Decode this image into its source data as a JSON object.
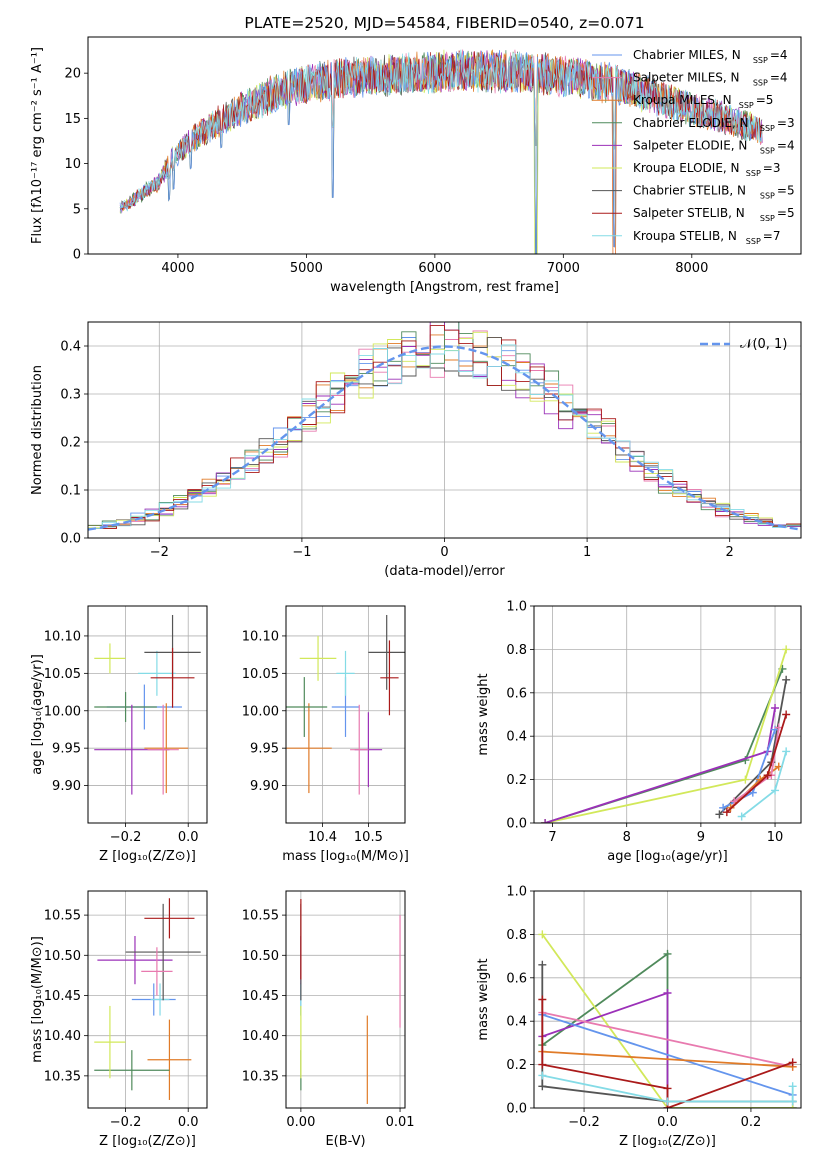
{
  "palette": [
    "#6495ed",
    "#e87aaf",
    "#e07b28",
    "#4f8a5b",
    "#9b30b8",
    "#d2e85a",
    "#555555",
    "#aa1a1a",
    "#84dbe6"
  ],
  "chart_data": [
    {
      "id": "spectrum",
      "type": "line",
      "title": "PLATE=2520, MJD=54584, FIBERID=0540, z=0.071",
      "xlabel": "wavelength [Angstrom, rest frame]",
      "ylabel": "Flux [fλ10⁻¹⁷ erg cm⁻² s⁻¹ A⁻¹]",
      "xlim": [
        3300,
        8850
      ],
      "ylim": [
        0,
        24
      ],
      "xticks": [
        4000,
        5000,
        6000,
        7000,
        8000
      ],
      "yticks": [
        0,
        5,
        10,
        15,
        20
      ],
      "legend": [
        {
          "label": "Chabrier MILES, N",
          "sub": "SSP",
          "tail": "=4"
        },
        {
          "label": "Salpeter MILES, N",
          "sub": "SSP",
          "tail": "=4"
        },
        {
          "label": "Kroupa MILES, N",
          "sub": "SSP",
          "tail": "=5"
        },
        {
          "label": "Chabrier ELODIE, N",
          "sub": "SSP",
          "tail": "=3"
        },
        {
          "label": "Salpeter ELODIE, N",
          "sub": "SSP",
          "tail": "=4"
        },
        {
          "label": "Kroupa ELODIE, N",
          "sub": "SSP",
          "tail": "=3"
        },
        {
          "label": "Chabrier STELIB, N",
          "sub": "SSP",
          "tail": "=5"
        },
        {
          "label": "Salpeter STELIB, N",
          "sub": "SSP",
          "tail": "=5"
        },
        {
          "label": "Kroupa STELIB, N",
          "sub": "SSP",
          "tail": "=7"
        }
      ],
      "legend_position": "upper-right",
      "continuum": [
        [
          3550,
          5
        ],
        [
          3700,
          6.5
        ],
        [
          3850,
          8
        ],
        [
          3950,
          10.5
        ],
        [
          4100,
          12.5
        ],
        [
          4300,
          14.5
        ],
        [
          4500,
          16
        ],
        [
          4700,
          17.5
        ],
        [
          4900,
          18.5
        ],
        [
          5100,
          19
        ],
        [
          5300,
          19.5
        ],
        [
          5600,
          19.8
        ],
        [
          5900,
          20
        ],
        [
          6200,
          20.3
        ],
        [
          6500,
          20.2
        ],
        [
          6800,
          20
        ],
        [
          7100,
          19.5
        ],
        [
          7400,
          18.8
        ],
        [
          7700,
          17.5
        ],
        [
          8000,
          16
        ],
        [
          8300,
          14.8
        ],
        [
          8550,
          13.5
        ]
      ],
      "dips": [
        [
          3933,
          4
        ],
        [
          3968,
          3.5
        ],
        [
          4102,
          3
        ],
        [
          4340,
          3
        ],
        [
          4861,
          4
        ],
        [
          5175,
          2
        ],
        [
          5205,
          13
        ],
        [
          5890,
          2
        ],
        [
          6563,
          2
        ],
        [
          6780,
          7
        ],
        [
          6790,
          20
        ],
        [
          7395,
          18
        ]
      ],
      "grid": false
    },
    {
      "id": "residuals",
      "type": "step",
      "xlabel": "(data-model)/error",
      "ylabel": "Normed distribution",
      "xlim": [
        -2.5,
        2.5
      ],
      "ylim": [
        0,
        0.45
      ],
      "xticks": [
        -2,
        -1,
        0,
        1,
        2
      ],
      "yticks": [
        0.0,
        0.1,
        0.2,
        0.3,
        0.4
      ],
      "legend": [
        "𝒩(0, 1)"
      ],
      "legend_position": "upper-right",
      "grid": true
    },
    {
      "id": "age-vs-z",
      "type": "errorbar",
      "xlabel": "Z [log₁₀(Z/Z⊙)]",
      "ylabel": "age  [log₁₀(age/yr)]",
      "xlim": [
        -0.32,
        0.06
      ],
      "ylim": [
        9.85,
        10.14
      ],
      "xticks": [
        -0.2,
        0.0
      ],
      "yticks": [
        9.9,
        9.95,
        10.0,
        10.05,
        10.1
      ],
      "grid": true,
      "points": [
        {
          "x": -0.14,
          "y": 10.005,
          "xe": 0.12,
          "ye": 0.03,
          "c": 0
        },
        {
          "x": -0.1,
          "y": 10.05,
          "xe": 0.06,
          "ye": 0.03,
          "c": 8
        },
        {
          "x": -0.07,
          "y": 9.95,
          "xe": 0.07,
          "ye": 0.06,
          "c": 2
        },
        {
          "x": -0.2,
          "y": 10.005,
          "xe": 0.1,
          "ye": 0.02,
          "c": 3
        },
        {
          "x": -0.18,
          "y": 9.948,
          "xe": 0.12,
          "ye": 0.06,
          "c": 4
        },
        {
          "x": -0.25,
          "y": 10.07,
          "xe": 0.05,
          "ye": 0.02,
          "c": 5
        },
        {
          "x": -0.05,
          "y": 10.078,
          "xe": 0.09,
          "ye": 0.05,
          "c": 6
        },
        {
          "x": -0.05,
          "y": 10.044,
          "xe": 0.07,
          "ye": 0.04,
          "c": 7
        },
        {
          "x": -0.08,
          "y": 9.948,
          "xe": 0.05,
          "ye": 0.06,
          "c": 1
        }
      ]
    },
    {
      "id": "age-vs-mass",
      "type": "errorbar",
      "xlabel": "mass [log₁₀(M/M⊙)]",
      "ylabel": "",
      "xlim": [
        10.32,
        10.58
      ],
      "ylim": [
        9.85,
        10.14
      ],
      "xticks": [
        10.4,
        10.5
      ],
      "yticks": [
        9.9,
        9.95,
        10.0,
        10.05,
        10.1
      ],
      "grid": true,
      "points": [
        {
          "x": 10.45,
          "y": 10.005,
          "xe": 0.03,
          "ye": 0.04,
          "c": 0
        },
        {
          "x": 10.45,
          "y": 10.05,
          "xe": 0.02,
          "ye": 0.03,
          "c": 8
        },
        {
          "x": 10.37,
          "y": 9.95,
          "xe": 0.05,
          "ye": 0.06,
          "c": 2
        },
        {
          "x": 10.36,
          "y": 10.005,
          "xe": 0.05,
          "ye": 0.04,
          "c": 3
        },
        {
          "x": 10.5,
          "y": 9.948,
          "xe": 0.03,
          "ye": 0.05,
          "c": 4
        },
        {
          "x": 10.39,
          "y": 10.07,
          "xe": 0.04,
          "ye": 0.03,
          "c": 5
        },
        {
          "x": 10.54,
          "y": 10.078,
          "xe": 0.04,
          "ye": 0.05,
          "c": 6
        },
        {
          "x": 10.546,
          "y": 10.044,
          "xe": 0.02,
          "ye": 0.05,
          "c": 7
        },
        {
          "x": 10.48,
          "y": 9.948,
          "xe": 0.02,
          "ye": 0.06,
          "c": 1
        }
      ]
    },
    {
      "id": "weight-vs-age",
      "type": "line",
      "xlabel": "age  [log₁₀(age/yr)]",
      "ylabel": "mass weight",
      "xlim": [
        6.75,
        10.35
      ],
      "ylim": [
        0,
        1.0
      ],
      "xticks": [
        7,
        8,
        9,
        10
      ],
      "yticks": [
        0.0,
        0.2,
        0.4,
        0.6,
        0.8,
        1.0
      ],
      "grid": true,
      "series": [
        {
          "c": 3,
          "x": [
            6.9,
            9.6,
            10.1
          ],
          "y": [
            0.0,
            0.29,
            0.71
          ]
        },
        {
          "c": 5,
          "x": [
            6.9,
            9.6,
            10.15
          ],
          "y": [
            0.0,
            0.2,
            0.8
          ]
        },
        {
          "c": 4,
          "x": [
            6.9,
            9.9,
            10.0
          ],
          "y": [
            0.0,
            0.33,
            0.53
          ]
        },
        {
          "c": 6,
          "x": [
            9.25,
            9.95,
            10.15
          ],
          "y": [
            0.04,
            0.28,
            0.66
          ]
        },
        {
          "c": 0,
          "x": [
            9.3,
            9.7,
            10.0
          ],
          "y": [
            0.07,
            0.14,
            0.43
          ]
        },
        {
          "c": 2,
          "x": [
            9.4,
            9.8,
            10.05
          ],
          "y": [
            0.07,
            0.2,
            0.26
          ]
        },
        {
          "c": 1,
          "x": [
            9.45,
            9.95,
            10.05
          ],
          "y": [
            0.1,
            0.22,
            0.44
          ]
        },
        {
          "c": 7,
          "x": [
            9.35,
            9.9,
            10.15
          ],
          "y": [
            0.05,
            0.22,
            0.5
          ]
        },
        {
          "c": 8,
          "x": [
            9.55,
            10.0,
            10.15
          ],
          "y": [
            0.03,
            0.15,
            0.33
          ]
        }
      ]
    },
    {
      "id": "mass-vs-z",
      "type": "errorbar",
      "xlabel": "Z [log₁₀(Z/Z⊙)]",
      "ylabel": "mass [log₁₀(M/M⊙)]",
      "xlim": [
        -0.32,
        0.06
      ],
      "ylim": [
        10.31,
        10.58
      ],
      "xticks": [
        -0.2,
        0.0
      ],
      "yticks": [
        10.35,
        10.4,
        10.45,
        10.5,
        10.55
      ],
      "grid": true,
      "points": [
        {
          "x": -0.11,
          "y": 10.445,
          "xe": 0.07,
          "ye": 0.02,
          "c": 0
        },
        {
          "x": -0.09,
          "y": 10.445,
          "xe": 0.03,
          "ye": 0.02,
          "c": 8
        },
        {
          "x": -0.06,
          "y": 10.37,
          "xe": 0.07,
          "ye": 0.05,
          "c": 2
        },
        {
          "x": -0.18,
          "y": 10.357,
          "xe": 0.12,
          "ye": 0.025,
          "c": 3
        },
        {
          "x": -0.17,
          "y": 10.494,
          "xe": 0.12,
          "ye": 0.03,
          "c": 4
        },
        {
          "x": -0.25,
          "y": 10.392,
          "xe": 0.05,
          "ye": 0.045,
          "c": 5
        },
        {
          "x": -0.08,
          "y": 10.504,
          "xe": 0.12,
          "ye": 0.06,
          "c": 6
        },
        {
          "x": -0.06,
          "y": 10.546,
          "xe": 0.08,
          "ye": 0.025,
          "c": 7
        },
        {
          "x": -0.1,
          "y": 10.48,
          "xe": 0.05,
          "ye": 0.03,
          "c": 1
        }
      ]
    },
    {
      "id": "mass-vs-ebv",
      "type": "errorbar",
      "xlabel": "E(B-V)",
      "ylabel": "",
      "xlim": [
        -0.0015,
        0.0105
      ],
      "ylim": [
        10.31,
        10.58
      ],
      "xticks": [
        0.0,
        0.01
      ],
      "yticks": [
        10.35,
        10.4,
        10.45,
        10.5,
        10.55
      ],
      "grid": true,
      "points": [
        {
          "x": 0.0,
          "y": 10.445,
          "xe": 0,
          "ye": 0.02,
          "c": 0
        },
        {
          "x": 0.0,
          "y": 10.445,
          "xe": 0,
          "ye": 0.02,
          "c": 8
        },
        {
          "x": 0.0067,
          "y": 10.37,
          "xe": 0,
          "ye": 0.055,
          "c": 2
        },
        {
          "x": 0.0,
          "y": 10.357,
          "xe": 0,
          "ye": 0.025,
          "c": 3
        },
        {
          "x": 0.0,
          "y": 10.494,
          "xe": 0,
          "ye": 0.03,
          "c": 4
        },
        {
          "x": 0.0,
          "y": 10.392,
          "xe": 0,
          "ye": 0.045,
          "c": 5
        },
        {
          "x": 0.0,
          "y": 10.504,
          "xe": 0,
          "ye": 0.06,
          "c": 6
        },
        {
          "x": 0.0,
          "y": 10.52,
          "xe": 0,
          "ye": 0.05,
          "c": 7
        },
        {
          "x": 0.01,
          "y": 10.48,
          "xe": 0,
          "ye": 0.07,
          "c": 1
        }
      ]
    },
    {
      "id": "weight-vs-z",
      "type": "line",
      "xlabel": "Z [log₁₀(Z/Z⊙)]",
      "ylabel": "mass weight",
      "xlim": [
        -0.32,
        0.32
      ],
      "ylim": [
        0,
        1.0
      ],
      "xticks": [
        -0.2,
        0.0,
        0.2
      ],
      "yticks": [
        0.0,
        0.2,
        0.4,
        0.6,
        0.8,
        1.0
      ],
      "grid": true,
      "series": [
        {
          "c": 3,
          "x": [
            -0.3,
            0.0,
            0.0,
            0.3
          ],
          "y": [
            0.29,
            0.71,
            0.0,
            0.0
          ]
        },
        {
          "c": 5,
          "x": [
            -0.3,
            0.0,
            0.3
          ],
          "y": [
            0.8,
            0.0,
            0.0
          ]
        },
        {
          "c": 4,
          "x": [
            -0.3,
            0.0,
            0.0
          ],
          "y": [
            0.33,
            0.53,
            0.0
          ]
        },
        {
          "c": 6,
          "x": [
            -0.3,
            -0.3,
            0.0,
            0.3
          ],
          "y": [
            0.66,
            0.1,
            0.03,
            0.03
          ]
        },
        {
          "c": 0,
          "x": [
            -0.3,
            0.3
          ],
          "y": [
            0.43,
            0.06
          ]
        },
        {
          "c": 1,
          "x": [
            -0.3,
            0.3
          ],
          "y": [
            0.44,
            0.19
          ]
        },
        {
          "c": 2,
          "x": [
            -0.3,
            0.3
          ],
          "y": [
            0.26,
            0.19
          ]
        },
        {
          "c": 7,
          "x": [
            -0.3,
            -0.3,
            0.0,
            0.0,
            0.3
          ],
          "y": [
            0.5,
            0.2,
            0.09,
            0.0,
            0.21
          ]
        },
        {
          "c": 8,
          "x": [
            -0.3,
            0.0,
            0.3,
            0.3
          ],
          "y": [
            0.15,
            0.03,
            0.03,
            0.1
          ]
        }
      ]
    }
  ]
}
